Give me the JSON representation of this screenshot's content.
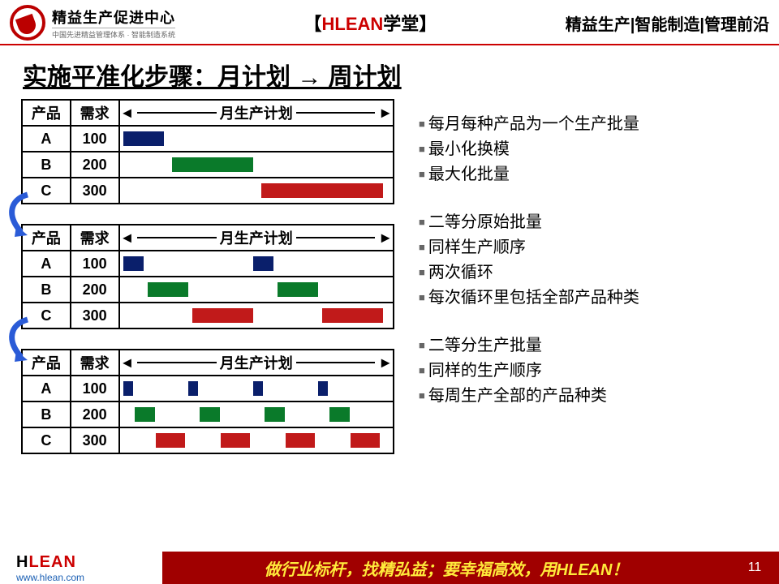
{
  "header": {
    "logo_cn": "精益生产促进中心",
    "logo_sub": "中国先进精益管理体系 · 智能制造系统",
    "center_prefix": "【",
    "center_hlean": "HLEAN",
    "center_suffix": "学堂】",
    "right": "精益生产|智能制造|管理前沿"
  },
  "title": "实施平准化步骤：月计划 → 周计划",
  "tables": [
    {
      "headers": {
        "prod": "产品",
        "demand": "需求",
        "plan": "月生产计划"
      },
      "rows": [
        {
          "prod": "A",
          "demand": "100",
          "bars": [
            [
              0,
              50
            ]
          ],
          "color": "#0a1f6b"
        },
        {
          "prod": "B",
          "demand": "200",
          "bars": [
            [
              60,
              100
            ]
          ],
          "color": "#0a7a2a"
        },
        {
          "prod": "C",
          "demand": "300",
          "bars": [
            [
              170,
              150
            ]
          ],
          "color": "#c11a1a"
        }
      ]
    },
    {
      "headers": {
        "prod": "产品",
        "demand": "需求",
        "plan": "月生产计划"
      },
      "rows": [
        {
          "prod": "A",
          "demand": "100",
          "bars": [
            [
              0,
              25
            ],
            [
              160,
              25
            ]
          ],
          "color": "#0a1f6b"
        },
        {
          "prod": "B",
          "demand": "200",
          "bars": [
            [
              30,
              50
            ],
            [
              190,
              50
            ]
          ],
          "color": "#0a7a2a"
        },
        {
          "prod": "C",
          "demand": "300",
          "bars": [
            [
              85,
              75
            ],
            [
              245,
              75
            ]
          ],
          "color": "#c11a1a"
        }
      ]
    },
    {
      "headers": {
        "prod": "产品",
        "demand": "需求",
        "plan": "月生产计划"
      },
      "rows": [
        {
          "prod": "A",
          "demand": "100",
          "bars": [
            [
              0,
              12
            ],
            [
              80,
              12
            ],
            [
              160,
              12
            ],
            [
              240,
              12
            ]
          ],
          "color": "#0a1f6b"
        },
        {
          "prod": "B",
          "demand": "200",
          "bars": [
            [
              14,
              25
            ],
            [
              94,
              25
            ],
            [
              174,
              25
            ],
            [
              254,
              25
            ]
          ],
          "color": "#0a7a2a"
        },
        {
          "prod": "C",
          "demand": "300",
          "bars": [
            [
              40,
              36
            ],
            [
              120,
              36
            ],
            [
              200,
              36
            ],
            [
              280,
              36
            ]
          ],
          "color": "#c11a1a"
        }
      ]
    }
  ],
  "bullets": [
    [
      "每月每种产品为一个生产批量",
      "最小化换模",
      "最大化批量"
    ],
    [
      "二等分原始批量",
      "同样生产顺序",
      "两次循环",
      "每次循环里包括全部产品种类"
    ],
    [
      "二等分生产批量",
      "同样的生产顺序",
      "每周生产全部的产品种类"
    ]
  ],
  "footer": {
    "logo_h": "H",
    "logo_rest": "LEAN",
    "url": "www.hlean.com",
    "slogan": "做行业标杆，找精弘益；要幸福高效，用HLEAN！",
    "page": "11"
  },
  "colors": {
    "accent_red": "#a00000",
    "bar_blue": "#0a1f6b",
    "bar_green": "#0a7a2a",
    "bar_red": "#c11a1a",
    "arrow_blue": "#2a5bd7"
  }
}
